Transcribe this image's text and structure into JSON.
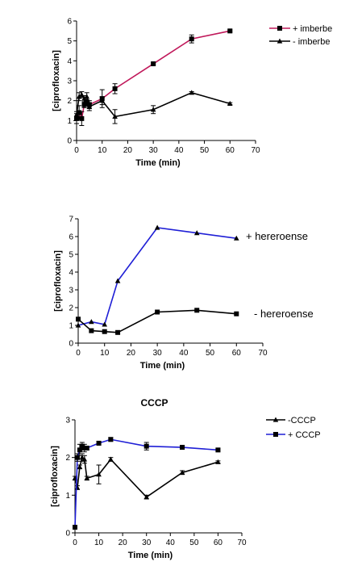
{
  "chart_data": [
    {
      "type": "line",
      "title": "",
      "xlabel": "Time (min)",
      "ylabel": "[ciprofloxacin]",
      "xlim": [
        0,
        70
      ],
      "ylim": [
        0,
        6
      ],
      "xticks": [
        0,
        10,
        20,
        30,
        40,
        50,
        60,
        70
      ],
      "yticks": [
        0,
        1,
        2,
        3,
        4,
        5,
        6
      ],
      "legend_position": "right",
      "series": [
        {
          "name": "+ imberbe",
          "color": "#c0185a",
          "marker": "square",
          "x": [
            0,
            1,
            2,
            3,
            4,
            5,
            10,
            15,
            30,
            45,
            60
          ],
          "y": [
            1.1,
            1.4,
            1.1,
            1.8,
            1.9,
            1.8,
            2.1,
            2.6,
            3.85,
            5.1,
            5.5
          ],
          "err": [
            0.25,
            0.35,
            0.35,
            0.15,
            0.15,
            0.2,
            0.45,
            0.25,
            0.05,
            0.2,
            0.05
          ]
        },
        {
          "name": "- imberbe",
          "color": "#000000",
          "marker": "triangle",
          "x": [
            0,
            1,
            2,
            3,
            4,
            5,
            10,
            15,
            30,
            45,
            60
          ],
          "y": [
            1.3,
            2.2,
            2.3,
            2.1,
            2.2,
            1.7,
            2.0,
            1.2,
            1.55,
            2.4,
            1.85
          ],
          "err": [
            0.15,
            0.2,
            0.15,
            0.15,
            0.2,
            0.2,
            0.2,
            0.35,
            0.2,
            0.05,
            0.05
          ]
        }
      ]
    },
    {
      "type": "line",
      "title": "",
      "xlabel": "Time (min)",
      "ylabel": "[ciprofloxacin]",
      "xlim": [
        0,
        70
      ],
      "ylim": [
        0,
        7
      ],
      "xticks": [
        0,
        10,
        20,
        30,
        40,
        50,
        60,
        70
      ],
      "yticks": [
        0,
        1,
        2,
        3,
        4,
        5,
        6,
        7
      ],
      "legend_position": "right",
      "series": [
        {
          "name": "+ hereroense",
          "color": "#1f1fd6",
          "marker": "triangle",
          "x": [
            0,
            5,
            10,
            15,
            30,
            45,
            60
          ],
          "y": [
            1.0,
            1.2,
            1.05,
            3.5,
            6.5,
            6.2,
            5.9
          ],
          "err": []
        },
        {
          "name": "- hereroense",
          "color": "#000000",
          "marker": "square",
          "x": [
            0,
            5,
            10,
            15,
            30,
            45,
            60
          ],
          "y": [
            1.35,
            0.7,
            0.65,
            0.6,
            1.75,
            1.85,
            1.65
          ],
          "err": []
        }
      ]
    },
    {
      "type": "line",
      "title": "CCCP",
      "xlabel": "Time (min)",
      "ylabel": "[ciprofloxacin]",
      "xlim": [
        0,
        70
      ],
      "ylim": [
        0,
        3
      ],
      "xticks": [
        0,
        10,
        20,
        30,
        40,
        50,
        60,
        70
      ],
      "yticks": [
        0,
        1,
        2,
        3
      ],
      "legend_position": "top-right",
      "series": [
        {
          "name": "-CCCP",
          "color": "#000000",
          "marker": "triangle",
          "x": [
            0,
            1,
            2,
            3,
            4,
            5,
            10,
            15,
            30,
            45,
            60
          ],
          "y": [
            1.45,
            1.2,
            1.75,
            2.0,
            1.95,
            1.45,
            1.55,
            1.95,
            0.95,
            1.6,
            1.88
          ],
          "err": [
            0.05,
            0.05,
            0.05,
            0.1,
            0.1,
            0.05,
            0.25,
            0.05,
            0.05,
            0.05,
            0.03
          ]
        },
        {
          "name": "+ CCCP",
          "color": "#1f1fd6",
          "marker": "square",
          "x": [
            0,
            1,
            2,
            3,
            4,
            5,
            10,
            15,
            30,
            45,
            60
          ],
          "y": [
            0.15,
            2.0,
            2.2,
            2.3,
            2.25,
            2.25,
            2.38,
            2.48,
            2.3,
            2.27,
            2.2
          ],
          "err": [
            0.03,
            0.1,
            0.15,
            0.1,
            0.1,
            0.05,
            0.05,
            0.05,
            0.1,
            0.05,
            0.03
          ]
        }
      ]
    }
  ]
}
